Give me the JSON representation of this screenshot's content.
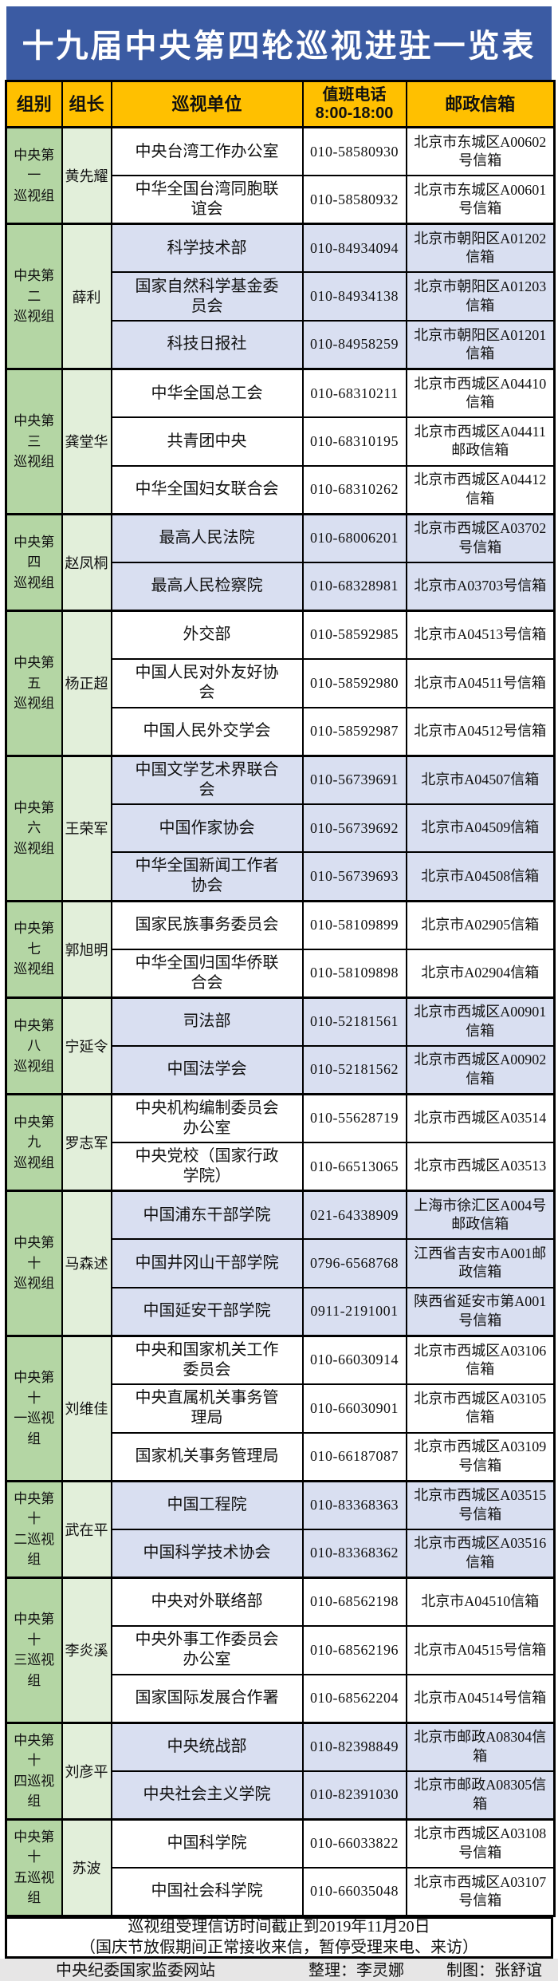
{
  "title": "十九届中央第四轮巡视进驻一览表",
  "table": {
    "headers": {
      "group": "组别",
      "leader": "组长",
      "unit": "巡视单位",
      "phone": "值班电话\n8:00-18:00",
      "mailbox": "邮政信箱"
    },
    "groups": [
      {
        "name": "中央第一\n巡视组",
        "leader": "黄先耀",
        "shade": "white",
        "units": [
          {
            "name": "中央台湾工作办公室",
            "phone": "010-58580930",
            "mailbox": "北京市东城区A00602号信箱"
          },
          {
            "name": "中华全国台湾同胞联谊会",
            "phone": "010-58580932",
            "mailbox": "北京市东城区A00601号信箱"
          }
        ]
      },
      {
        "name": "中央第二\n巡视组",
        "leader": "薛利",
        "shade": "alt",
        "units": [
          {
            "name": "科学技术部",
            "phone": "010-84934094",
            "mailbox": "北京市朝阳区A01202信箱"
          },
          {
            "name": "国家自然科学基金委员会",
            "phone": "010-84934138",
            "mailbox": "北京市朝阳区A01203信箱"
          },
          {
            "name": "科技日报社",
            "phone": "010-84958259",
            "mailbox": "北京市朝阳区A01201信箱"
          }
        ]
      },
      {
        "name": "中央第三\n巡视组",
        "leader": "龚堂华",
        "shade": "white",
        "units": [
          {
            "name": "中华全国总工会",
            "phone": "010-68310211",
            "mailbox": "北京市西城区A04410信箱"
          },
          {
            "name": "共青团中央",
            "phone": "010-68310195",
            "mailbox": "北京市西城区A04411邮政信箱"
          },
          {
            "name": "中华全国妇女联合会",
            "phone": "010-68310262",
            "mailbox": "北京市西城区A04412信箱"
          }
        ]
      },
      {
        "name": "中央第四\n巡视组",
        "leader": "赵凤桐",
        "shade": "alt",
        "units": [
          {
            "name": "最高人民法院",
            "phone": "010-68006201",
            "mailbox": "北京市西城区A03702号信箱"
          },
          {
            "name": "最高人民检察院",
            "phone": "010-68328981",
            "mailbox": "北京市A03703号信箱"
          }
        ]
      },
      {
        "name": "中央第五\n巡视组",
        "leader": "杨正超",
        "shade": "white",
        "units": [
          {
            "name": "外交部",
            "phone": "010-58592985",
            "mailbox": "北京市A04513号信箱"
          },
          {
            "name": "中国人民对外友好协会",
            "phone": "010-58592980",
            "mailbox": "北京市A04511号信箱"
          },
          {
            "name": "中国人民外交学会",
            "phone": "010-58592987",
            "mailbox": "北京市A04512号信箱"
          }
        ]
      },
      {
        "name": "中央第六\n巡视组",
        "leader": "王荣军",
        "shade": "alt",
        "units": [
          {
            "name": "中国文学艺术界联合会",
            "phone": "010-56739691",
            "mailbox": "北京市A04507信箱"
          },
          {
            "name": "中国作家协会",
            "phone": "010-56739692",
            "mailbox": "北京市A04509信箱"
          },
          {
            "name": "中华全国新闻工作者协会",
            "phone": "010-56739693",
            "mailbox": "北京市A04508信箱"
          }
        ]
      },
      {
        "name": "中央第七\n巡视组",
        "leader": "郭旭明",
        "shade": "white",
        "units": [
          {
            "name": "国家民族事务委员会",
            "phone": "010-58109899",
            "mailbox": "北京市A02905信箱"
          },
          {
            "name": "中华全国归国华侨联合会",
            "phone": "010-58109898",
            "mailbox": "北京市A02904信箱"
          }
        ]
      },
      {
        "name": "中央第八\n巡视组",
        "leader": "宁延令",
        "shade": "alt",
        "units": [
          {
            "name": "司法部",
            "phone": "010-52181561",
            "mailbox": "北京市西城区A00901信箱"
          },
          {
            "name": "中国法学会",
            "phone": "010-52181562",
            "mailbox": "北京市西城区A00902信箱"
          }
        ]
      },
      {
        "name": "中央第九\n巡视组",
        "leader": "罗志军",
        "shade": "white",
        "units": [
          {
            "name": "中央机构编制委员会办公室",
            "phone": "010-55628719",
            "mailbox": "北京市西城区A03514"
          },
          {
            "name": "中央党校（国家行政学院）",
            "phone": "010-66513065",
            "mailbox": "北京市西城区A03513"
          }
        ]
      },
      {
        "name": "中央第十\n巡视组",
        "leader": "马森述",
        "shade": "alt",
        "units": [
          {
            "name": "中国浦东干部学院",
            "phone": "021-64338909",
            "mailbox": "上海市徐汇区A004号邮政信箱"
          },
          {
            "name": "中国井冈山干部学院",
            "phone": "0796-6568768",
            "mailbox": "江西省吉安市A001邮政信箱"
          },
          {
            "name": "中国延安干部学院",
            "phone": "0911-2191001",
            "mailbox": "陕西省延安市第A001号信箱"
          }
        ]
      },
      {
        "name": "中央第十\n一巡视组",
        "leader": "刘维佳",
        "shade": "white",
        "units": [
          {
            "name": "中央和国家机关工作委员会",
            "phone": "010-66030914",
            "mailbox": "北京市西城区A03106信箱"
          },
          {
            "name": "中央直属机关事务管理局",
            "phone": "010-66030901",
            "mailbox": "北京市西城区A03105信箱"
          },
          {
            "name": "国家机关事务管理局",
            "phone": "010-66187087",
            "mailbox": "北京市西城区A03109号信箱"
          }
        ]
      },
      {
        "name": "中央第十\n二巡视组",
        "leader": "武在平",
        "shade": "alt",
        "units": [
          {
            "name": "中国工程院",
            "phone": "010-83368363",
            "mailbox": "北京市西城区A03515号信箱"
          },
          {
            "name": "中国科学技术协会",
            "phone": "010-83368362",
            "mailbox": "北京市西城区A03516信箱"
          }
        ]
      },
      {
        "name": "中央第十\n三巡视组",
        "leader": "李炎溪",
        "shade": "white",
        "units": [
          {
            "name": "中央对外联络部",
            "phone": "010-68562198",
            "mailbox": "北京市A04510信箱"
          },
          {
            "name": "中央外事工作委员会办公室",
            "phone": "010-68562196",
            "mailbox": "北京市A04515号信箱"
          },
          {
            "name": "国家国际发展合作署",
            "phone": "010-68562204",
            "mailbox": "北京市A04514号信箱"
          }
        ]
      },
      {
        "name": "中央第十\n四巡视组",
        "leader": "刘彦平",
        "shade": "alt",
        "units": [
          {
            "name": "中央统战部",
            "phone": "010-82398849",
            "mailbox": "北京市邮政A08304信箱"
          },
          {
            "name": "中央社会主义学院",
            "phone": "010-82391030",
            "mailbox": "北京市邮政A08305信箱"
          }
        ]
      },
      {
        "name": "中央第十\n五巡视组",
        "leader": "苏波",
        "shade": "white",
        "units": [
          {
            "name": "中国科学院",
            "phone": "010-66033822",
            "mailbox": "北京市西城区A03108号信箱"
          },
          {
            "name": "中国社会科学院",
            "phone": "010-66035048",
            "mailbox": "北京市西城区A03107号信箱"
          }
        ]
      }
    ]
  },
  "footnote": {
    "line1": "巡视组受理信访时间截止到2019年11月20日",
    "line2": "（国庆节放假期间正常接收来信，暂停受理来电、来访）"
  },
  "credits": {
    "source": "中央纪委国家监委网站",
    "editor": "整理：李灵娜",
    "designer": "制图：张舒谊"
  },
  "colors": {
    "title_bg": "#3b5ba3",
    "header_bg": "#ffc000",
    "group_bg": "#b4d6a4",
    "leader_bg": "#e2efda",
    "alt_row_bg": "#d9dff1",
    "bar_bg": "#e7e6e6"
  }
}
